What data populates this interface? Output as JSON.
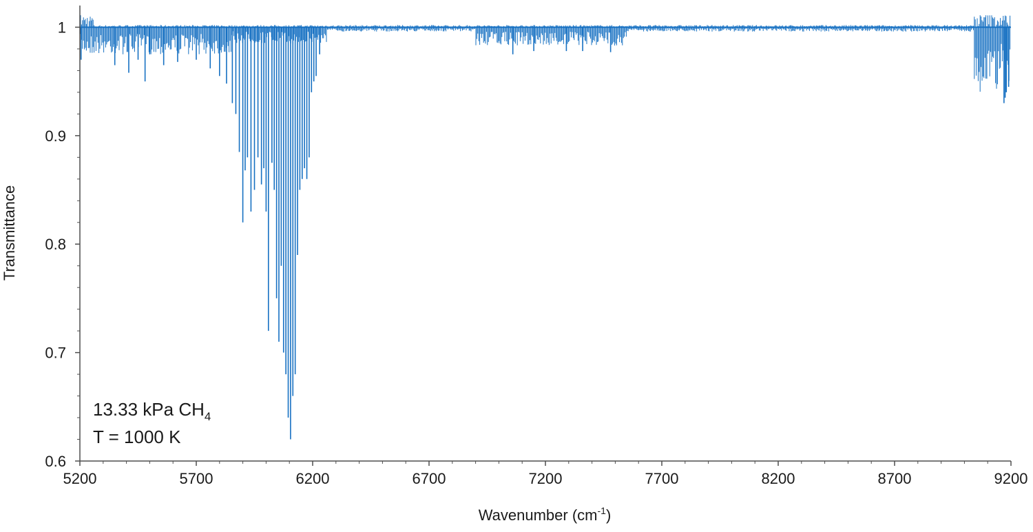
{
  "chart_data": {
    "type": "line",
    "xlabel": "Wavenumber (cm",
    "xlabel_superscript": "-1",
    "xlabel_suffix": ")",
    "ylabel": "Transmittance",
    "xlim": [
      5200,
      9200
    ],
    "ylim": [
      0.6,
      1.02
    ],
    "x_ticks": [
      5200,
      5700,
      6200,
      6700,
      7200,
      7700,
      8200,
      8700,
      9200
    ],
    "y_ticks": [
      0.6,
      0.7,
      0.8,
      0.9,
      1
    ],
    "x_tick_labels": [
      "5200",
      "5700",
      "6200",
      "6700",
      "7200",
      "7700",
      "8200",
      "8700",
      "9200"
    ],
    "y_tick_labels": [
      "0.6",
      "0.7",
      "0.8",
      "0.9",
      "1"
    ],
    "grid": false,
    "legend": "none",
    "line_color": "#1670c2",
    "annotation": {
      "line1_main": "13.33 kPa CH",
      "line1_subscript": "4",
      "line2": "T = 1000 K"
    },
    "baseline_noise_bands": [
      {
        "x_start": 5200,
        "x_end": 5850,
        "min_y": 0.975
      },
      {
        "x_start": 5850,
        "x_end": 6260,
        "min_y": 0.985
      },
      {
        "x_start": 6900,
        "x_end": 7550,
        "min_y": 0.983
      },
      {
        "x_start": 9040,
        "x_end": 9200,
        "min_y": 0.94
      }
    ],
    "series": [
      {
        "x": [
          5205,
          5350,
          5410,
          5450,
          5480,
          5500,
          5560,
          5620,
          5700,
          5760,
          5800,
          5830,
          5855,
          5870,
          5885,
          5900,
          5910,
          5920,
          5935,
          5950,
          5965,
          5980,
          5990,
          6000,
          6010,
          6025,
          6035,
          6045,
          6055,
          6065,
          6075,
          6085,
          6095,
          6105,
          6115,
          6125,
          6135,
          6145,
          6155,
          6165,
          6175,
          6185,
          6195,
          6205,
          6215,
          6230,
          7060,
          7150,
          7290,
          7360,
          7480,
          9170,
          9175,
          9180,
          9190
        ],
        "min_y": [
          0.97,
          0.965,
          0.958,
          0.97,
          0.95,
          0.975,
          0.965,
          0.968,
          0.97,
          0.962,
          0.955,
          0.948,
          0.93,
          0.92,
          0.885,
          0.82,
          0.868,
          0.88,
          0.83,
          0.85,
          0.88,
          0.855,
          0.87,
          0.83,
          0.72,
          0.875,
          0.85,
          0.75,
          0.71,
          0.78,
          0.7,
          0.68,
          0.64,
          0.62,
          0.66,
          0.68,
          0.79,
          0.85,
          0.86,
          0.87,
          0.86,
          0.88,
          0.94,
          0.95,
          0.955,
          0.975,
          0.975,
          0.978,
          0.978,
          0.978,
          0.977,
          0.93,
          0.935,
          0.94,
          0.945
        ]
      }
    ]
  }
}
